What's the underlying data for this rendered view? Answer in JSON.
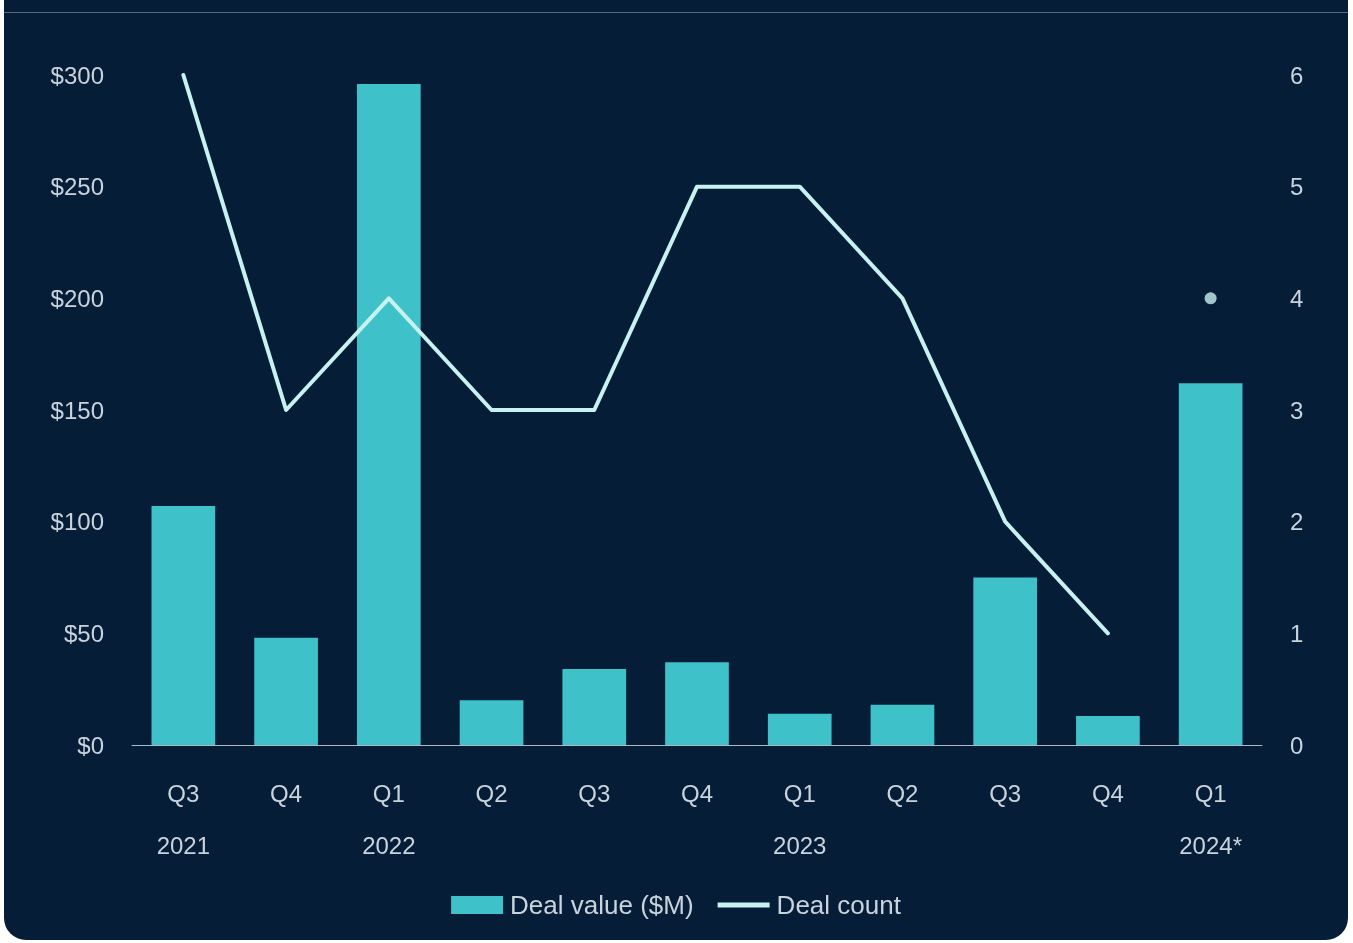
{
  "chart_data": {
    "type": "bar",
    "categories": [
      "Q3\n2021",
      "Q4",
      "Q1\n2022",
      "Q2",
      "Q3",
      "Q4",
      "Q1\n2023",
      "Q2",
      "Q3",
      "Q4",
      "Q1\n2024*"
    ],
    "series": [
      {
        "name": "Deal value ($M)",
        "color": "#3fc1c9",
        "values": [
          107,
          48,
          296,
          20,
          34,
          37,
          14,
          18,
          75,
          13,
          162
        ]
      },
      {
        "name": "Deal count",
        "type": "line",
        "axis": "y2",
        "marker": "none",
        "color": "#c8f2f0",
        "values": [
          6,
          3,
          4,
          3,
          3,
          5,
          5,
          4,
          2,
          1,
          null
        ]
      },
      {
        "type": "scatter",
        "axis": "y2",
        "marker": "circle",
        "color": "#c8f2f0",
        "values": [
          null,
          null,
          null,
          null,
          null,
          null,
          null,
          null,
          null,
          null,
          4
        ]
      }
    ],
    "ylim": [
      0,
      300
    ],
    "yticks": [
      {
        "value": 0,
        "label": "$0"
      },
      {
        "value": 50,
        "label": "$50"
      },
      {
        "value": 100,
        "label": "$100"
      },
      {
        "value": 150,
        "label": "$150"
      },
      {
        "value": 200,
        "label": "$200"
      },
      {
        "value": 250,
        "label": "$250"
      },
      {
        "value": 300,
        "label": "$300"
      }
    ],
    "y2lim": [
      0,
      6
    ],
    "y2ticks": [
      0,
      1,
      2,
      3,
      4,
      5,
      6
    ],
    "grid": false,
    "legend": "bottom"
  }
}
